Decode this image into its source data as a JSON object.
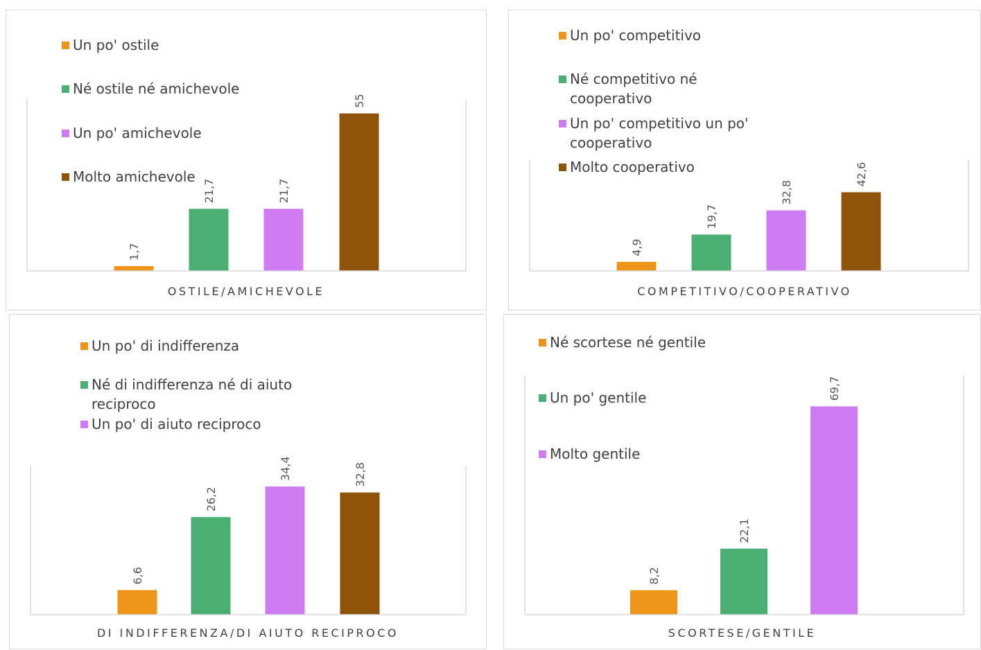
{
  "colors": {
    "orange": "#ED9419",
    "green": "#4BAF73",
    "violet": "#CF7CF4",
    "brown": "#8E540A",
    "axis": "#d9d9d9",
    "text": "#404040"
  },
  "chart_data": [
    {
      "type": "bar",
      "title": "",
      "xlabel": "OSTILE/AMICHEVOLE",
      "ylabel": "",
      "ylim": [
        0,
        60
      ],
      "grid": false,
      "legend_position": "top-left",
      "series": [
        {
          "name": "Un po' ostile",
          "value": 1.7,
          "label": "1,7",
          "color": "#ED9419"
        },
        {
          "name": "Né ostile né amichevole",
          "value": 21.7,
          "label": "21,7",
          "color": "#4BAF73"
        },
        {
          "name": "Un po' amichevole",
          "value": 21.7,
          "label": "21,7",
          "color": "#CF7CF4"
        },
        {
          "name": "Molto amichevole",
          "value": 55,
          "label": "55",
          "color": "#8E540A"
        }
      ]
    },
    {
      "type": "bar",
      "title": "",
      "xlabel": "COMPETITIVO/COOPERATIVO",
      "ylabel": "",
      "ylim": [
        0,
        60
      ],
      "grid": false,
      "legend_position": "top-left",
      "series": [
        {
          "name": "Un po' competitivo",
          "value": 4.9,
          "label": "4,9",
          "color": "#ED9419"
        },
        {
          "name": "Né competitivo né cooperativo",
          "value": 19.7,
          "label": "19,7",
          "color": "#4BAF73"
        },
        {
          "name": "Un po' competitivo un po' cooperativo",
          "value": 32.8,
          "label": "32,8",
          "color": "#CF7CF4"
        },
        {
          "name": "Molto cooperativo",
          "value": 42.6,
          "label": "42,6",
          "color": "#8E540A"
        }
      ]
    },
    {
      "type": "bar",
      "title": "",
      "xlabel": "DI INDIFFERENZA/DI AIUTO RECIPROCO",
      "ylabel": "",
      "ylim": [
        0,
        40
      ],
      "grid": false,
      "legend_position": "top-left",
      "series": [
        {
          "name": "Un po' di indifferenza",
          "value": 6.6,
          "label": "6,6",
          "color": "#ED9419"
        },
        {
          "name": "Né di indifferenza né di aiuto reciproco",
          "value": 26.2,
          "label": "26,2",
          "color": "#4BAF73"
        },
        {
          "name": "Un po' di aiuto reciproco",
          "value": 34.4,
          "label": "34,4",
          "color": "#CF7CF4"
        },
        {
          "name": "",
          "value": 32.8,
          "label": "32,8",
          "color": "#8E540A"
        }
      ]
    },
    {
      "type": "bar",
      "title": "",
      "xlabel": "SCORTESE/GENTILE",
      "ylabel": "",
      "ylim": [
        0,
        80
      ],
      "grid": false,
      "legend_position": "top-left",
      "series": [
        {
          "name": "Né scortese né gentile",
          "value": 8.2,
          "label": "8,2",
          "color": "#ED9419"
        },
        {
          "name": "Un po' gentile",
          "value": 22.1,
          "label": "22,1",
          "color": "#4BAF73"
        },
        {
          "name": "Molto gentile",
          "value": 69.7,
          "label": "69,7",
          "color": "#CF7CF4"
        }
      ]
    }
  ],
  "legends": [
    [
      {
        "lines": [
          "Un po' ostile"
        ],
        "color": "#ED9419"
      },
      {
        "lines": [
          "Né ostile né amichevole"
        ],
        "color": "#4BAF73"
      },
      {
        "lines": [
          "Un po' amichevole"
        ],
        "color": "#CF7CF4"
      },
      {
        "lines": [
          "Molto amichevole"
        ],
        "color": "#8E540A"
      }
    ],
    [
      {
        "lines": [
          "Un po' competitivo"
        ],
        "color": "#ED9419"
      },
      {
        "lines": [
          "Né competitivo né",
          "cooperativo"
        ],
        "color": "#4BAF73"
      },
      {
        "lines": [
          "Un po' competitivo un po'",
          "cooperativo"
        ],
        "color": "#CF7CF4"
      },
      {
        "lines": [
          "Molto cooperativo"
        ],
        "color": "#8E540A"
      }
    ],
    [
      {
        "lines": [
          "Un po' di indifferenza"
        ],
        "color": "#ED9419"
      },
      {
        "lines": [
          "Né di indifferenza né di aiuto",
          "reciproco"
        ],
        "color": "#4BAF73"
      },
      {
        "lines": [
          "Un po' di aiuto reciproco"
        ],
        "color": "#CF7CF4"
      }
    ],
    [
      {
        "lines": [
          "Né scortese né gentile"
        ],
        "color": "#ED9419"
      },
      {
        "lines": [
          "Un po' gentile"
        ],
        "color": "#4BAF73"
      },
      {
        "lines": [
          "Molto gentile"
        ],
        "color": "#CF7CF4"
      }
    ]
  ]
}
